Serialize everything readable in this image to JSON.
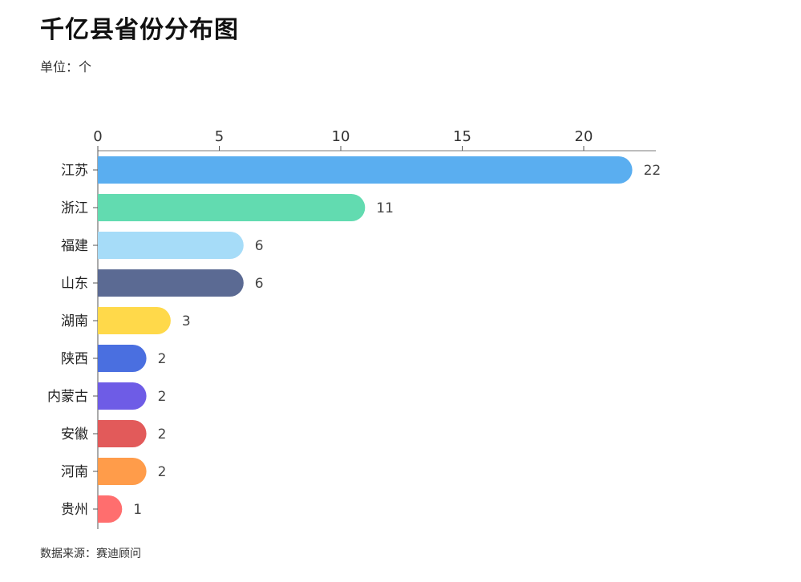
{
  "title": "千亿县省份分布图",
  "subtitle": "单位：个",
  "source": "数据来源：赛迪顾问",
  "chart_data": {
    "type": "bar",
    "orientation": "horizontal",
    "title": "千亿县省份分布图",
    "unit": "单位：个",
    "xaxis_position": "top",
    "xlim": [
      0,
      23
    ],
    "xticks": [
      0,
      5,
      10,
      15,
      20
    ],
    "categories": [
      "江苏",
      "浙江",
      "福建",
      "山东",
      "湖南",
      "陕西",
      "内蒙古",
      "安徽",
      "河南",
      "贵州"
    ],
    "values": [
      22,
      11,
      6,
      6,
      3,
      2,
      2,
      2,
      2,
      1
    ],
    "colors": [
      "#5aaef0",
      "#62dbb0",
      "#a6dcf8",
      "#5b6a93",
      "#ffd94a",
      "#4a6fe0",
      "#6e5ce6",
      "#e25a5a",
      "#ff9c4a",
      "#ff6e6e"
    ],
    "data_labels": true,
    "grid": false,
    "legend": "none"
  }
}
